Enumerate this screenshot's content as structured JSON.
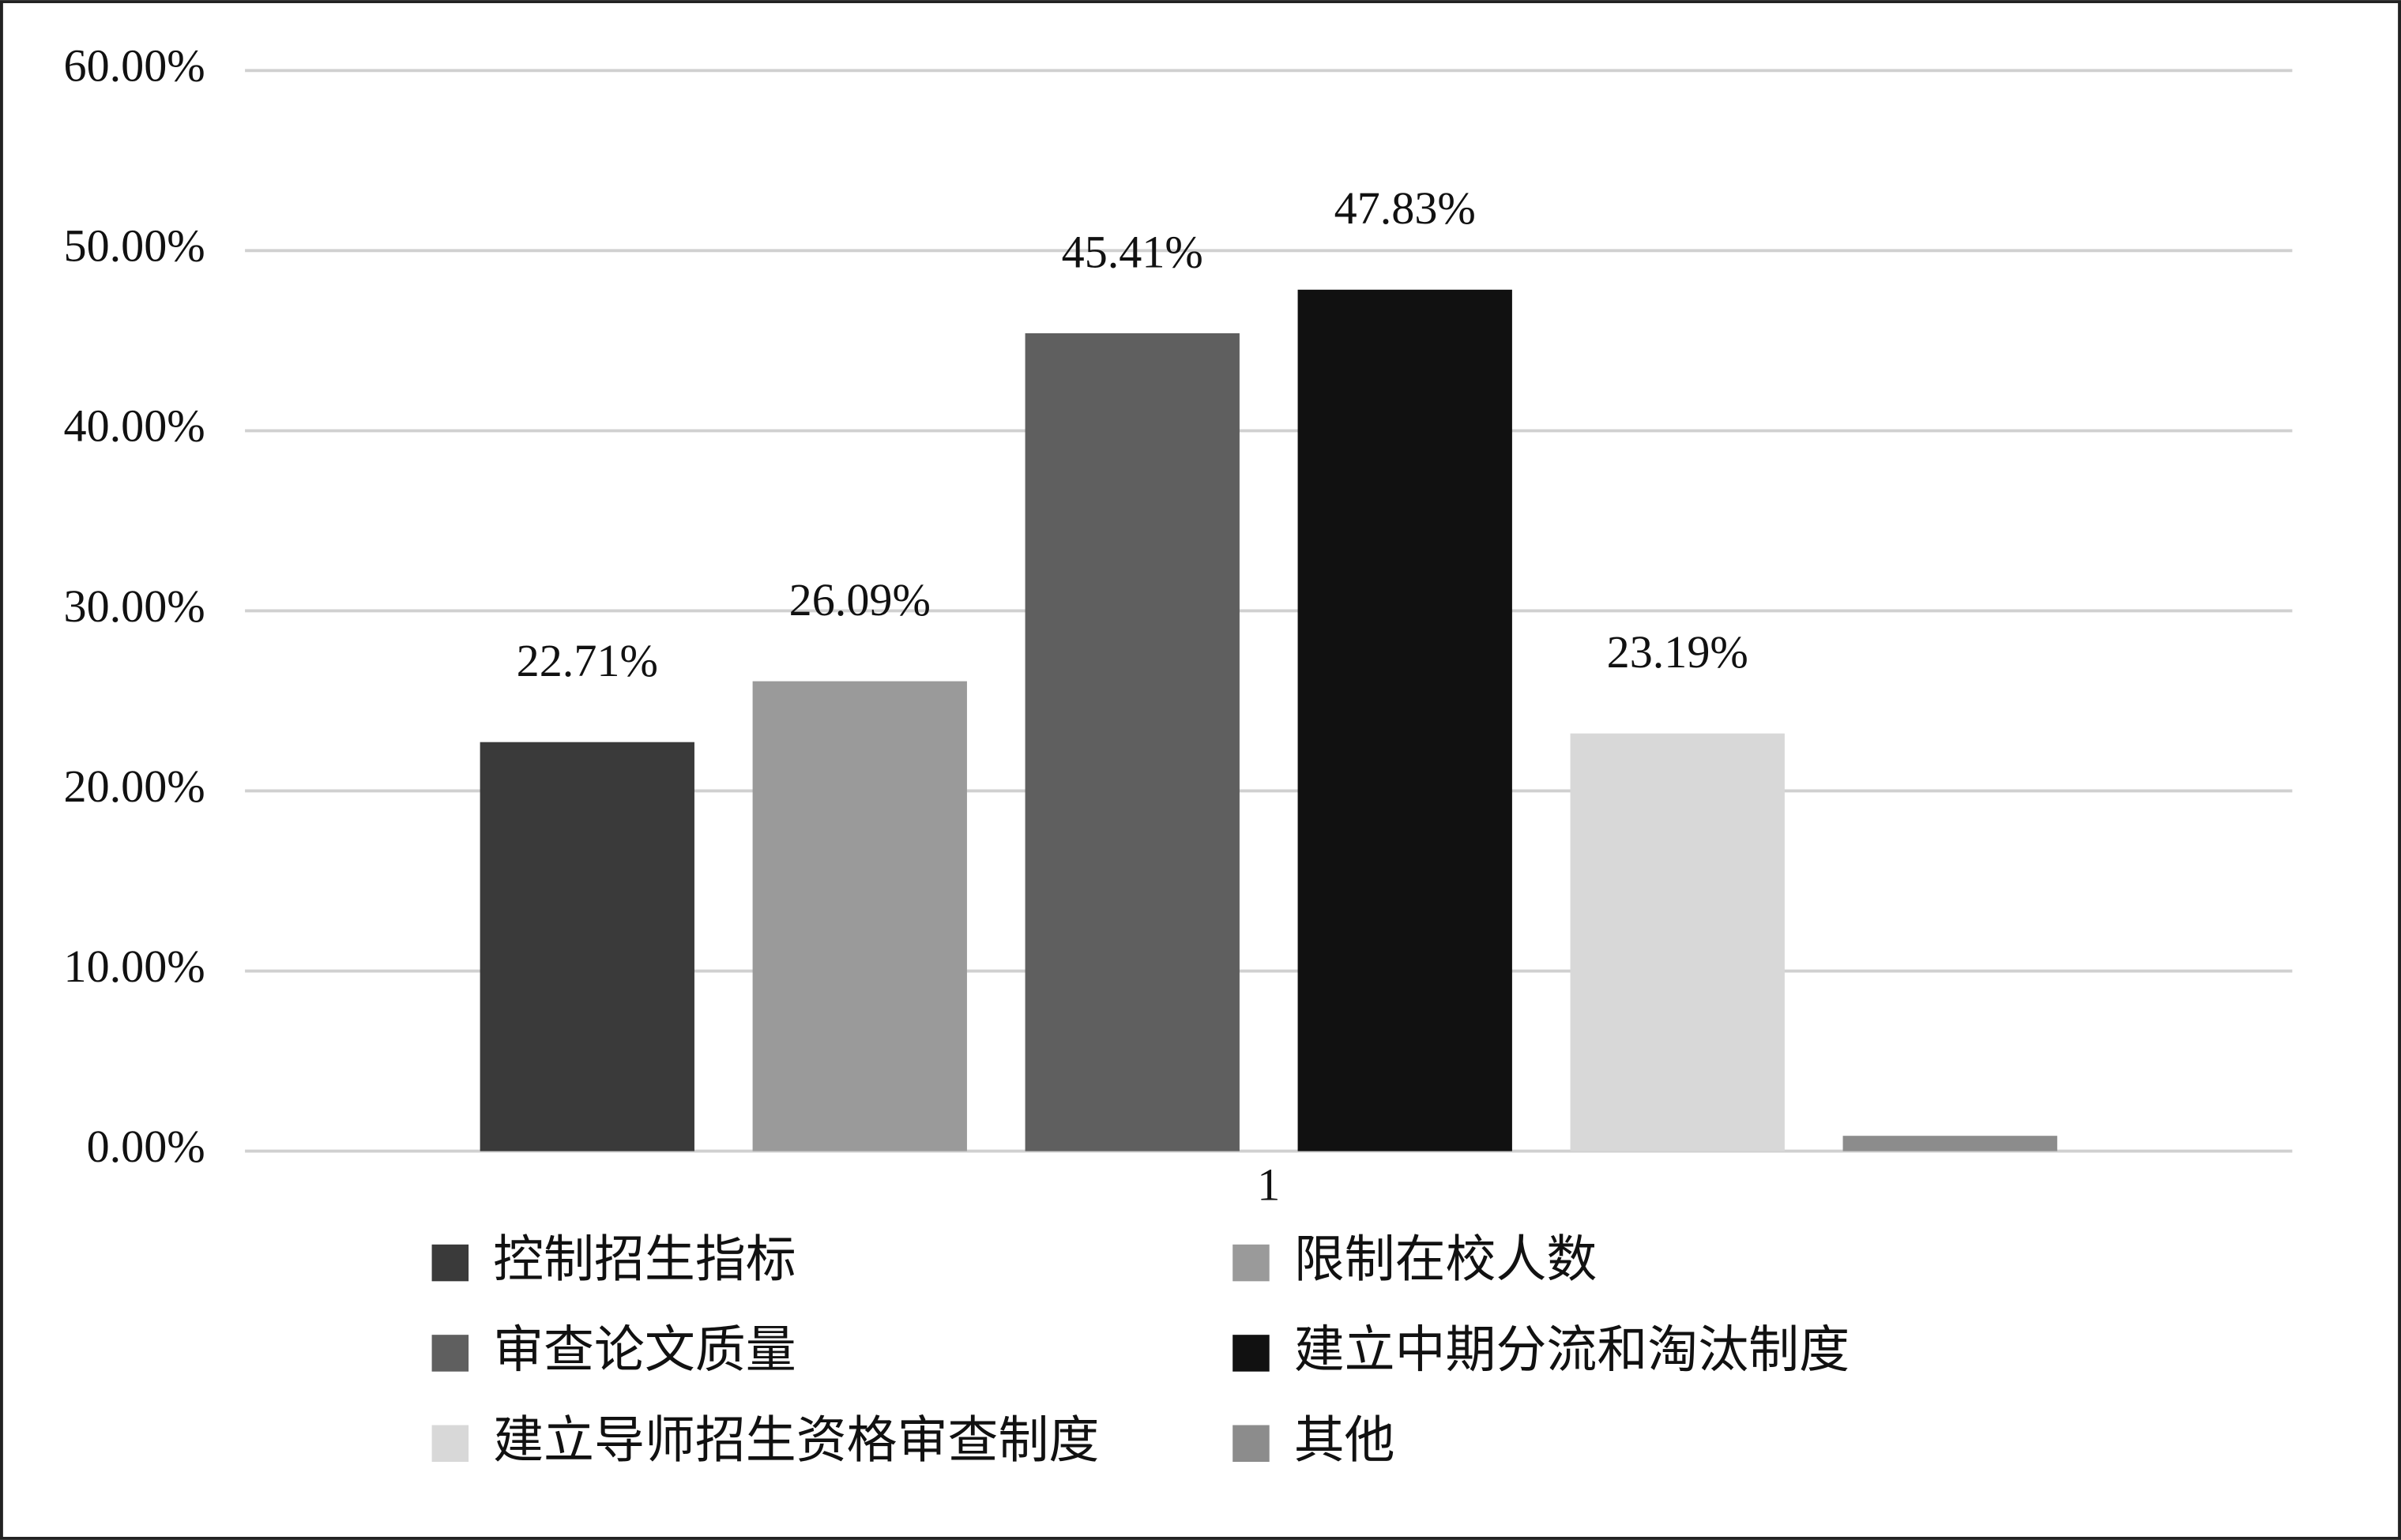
{
  "chart_data": {
    "type": "bar",
    "categories": [
      "1"
    ],
    "series": [
      {
        "name": "控制招生指标",
        "color": "#3a3a3a",
        "values": [
          22.71
        ],
        "value_labels": [
          "22.71%"
        ]
      },
      {
        "name": "限制在校人数",
        "color": "#9a9a9a",
        "values": [
          26.09
        ],
        "value_labels": [
          "26.09%"
        ]
      },
      {
        "name": "审查论文质量",
        "color": "#5f5f5f",
        "values": [
          45.41
        ],
        "value_labels": [
          "45.41%"
        ]
      },
      {
        "name": "建立中期分流和淘汰制度",
        "color": "#111111",
        "values": [
          47.83
        ],
        "value_labels": [
          "47.83%"
        ]
      },
      {
        "name": "建立导师招生资格审查制度",
        "color": "#d8d8d8",
        "values": [
          23.19
        ],
        "value_labels": [
          "23.19%"
        ]
      },
      {
        "name": "其他",
        "color": "#8c8c8c",
        "values": [
          0.85
        ]
      }
    ],
    "ylim": [
      0,
      60
    ],
    "yticks": [
      {
        "value": 0,
        "label": "0.00%"
      },
      {
        "value": 10,
        "label": "10.00%"
      },
      {
        "value": 20,
        "label": "20.00%"
      },
      {
        "value": 30,
        "label": "30.00%"
      },
      {
        "value": 40,
        "label": "40.00%"
      },
      {
        "value": 50,
        "label": "50.00%"
      },
      {
        "value": 60,
        "label": "60.00%"
      }
    ],
    "grid": true,
    "legend": "bottom"
  }
}
